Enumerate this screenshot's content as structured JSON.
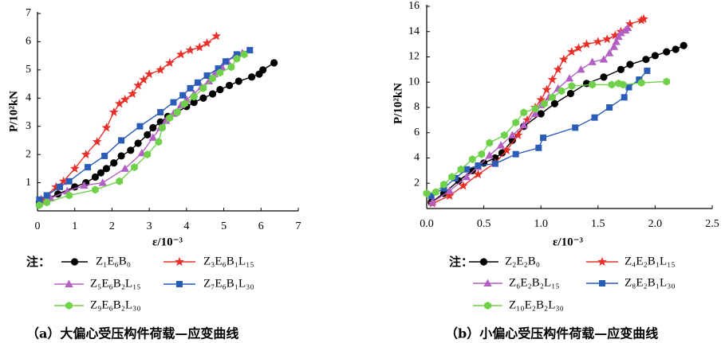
{
  "chart_data": [
    {
      "type": "line",
      "caption": "（a）大偏心受压构件荷载—应变曲线",
      "xlabel": "ε/10⁻³",
      "ylabel": "P/10²kN",
      "xlim": [
        0,
        7
      ],
      "ylim": [
        0,
        7
      ],
      "xticks": [
        0,
        1,
        2,
        3,
        4,
        5,
        6,
        7
      ],
      "xtick_labels": [
        "0",
        "1",
        "2",
        "3",
        "4",
        "5",
        "6",
        "7"
      ],
      "yticks": [
        1,
        2,
        3,
        4,
        5,
        6,
        7
      ],
      "ytick_labels": [
        "1",
        "2",
        "3",
        "4",
        "5",
        "6",
        "7"
      ],
      "grid": false,
      "legend_prefix": "注：",
      "legend_position": "below",
      "series": [
        {
          "name": "Z₁E₆B₀",
          "color": "#000000",
          "marker": "circle",
          "x": [
            0.05,
            0.55,
            1.0,
            1.3,
            1.55,
            1.7,
            1.85,
            2.05,
            2.25,
            2.5,
            2.7,
            2.95,
            3.1,
            3.3,
            3.5,
            3.75,
            4.0,
            4.2,
            4.45,
            4.7,
            4.9,
            5.15,
            5.4,
            5.75,
            5.95,
            6.05,
            6.35
          ],
          "y": [
            0.3,
            0.6,
            0.85,
            1.0,
            1.2,
            1.35,
            1.5,
            1.7,
            1.95,
            2.15,
            2.4,
            2.7,
            2.95,
            3.15,
            3.35,
            3.5,
            3.7,
            3.85,
            4.0,
            4.15,
            4.3,
            4.45,
            4.6,
            4.75,
            4.85,
            5.0,
            5.25
          ]
        },
        {
          "name": "Z₃E₆B₁L₁₅",
          "color": "#e8302a",
          "marker": "star",
          "x": [
            0.1,
            0.5,
            0.7,
            1.0,
            1.3,
            1.6,
            1.85,
            2.05,
            2.2,
            2.35,
            2.55,
            2.7,
            2.85,
            3.0,
            3.3,
            3.55,
            3.85,
            4.1,
            4.35,
            4.55,
            4.8
          ],
          "y": [
            0.4,
            0.85,
            1.05,
            1.5,
            2.0,
            2.45,
            2.95,
            3.5,
            3.8,
            3.95,
            4.15,
            4.45,
            4.65,
            4.85,
            5.0,
            5.25,
            5.55,
            5.7,
            5.8,
            5.95,
            6.2
          ]
        },
        {
          "name": "Z₅E₆B₂L₁₅",
          "color": "#b45fc4",
          "marker": "triangle",
          "x": [
            0.05,
            0.35,
            0.8,
            1.25,
            1.75,
            2.35,
            2.8,
            3.1,
            3.3,
            3.45,
            3.65,
            3.85,
            4.0,
            4.2,
            4.4,
            4.6,
            4.75,
            4.95,
            5.1,
            5.3,
            5.5
          ],
          "y": [
            0.3,
            0.45,
            0.7,
            0.9,
            1.0,
            1.5,
            2.05,
            2.6,
            2.95,
            3.2,
            3.45,
            3.75,
            3.95,
            4.15,
            4.4,
            4.6,
            4.85,
            5.1,
            5.3,
            5.5,
            5.6
          ]
        },
        {
          "name": "Z₇E₆B₁L₃₀",
          "color": "#2a5cb8",
          "marker": "square",
          "x": [
            0.05,
            0.25,
            0.6,
            0.85,
            1.35,
            1.8,
            2.25,
            2.75,
            3.3,
            3.65,
            3.9,
            4.1,
            4.3,
            4.55,
            4.85,
            5.05,
            5.35,
            5.7
          ],
          "y": [
            0.4,
            0.55,
            0.85,
            1.05,
            1.55,
            1.95,
            2.5,
            3.0,
            3.5,
            3.85,
            4.1,
            4.35,
            4.55,
            4.8,
            5.05,
            5.3,
            5.55,
            5.7
          ]
        },
        {
          "name": "Z₉E₆B₂L₃₀",
          "color": "#6fd14a",
          "marker": "hexagon",
          "x": [
            0.05,
            0.25,
            0.85,
            1.55,
            2.2,
            2.6,
            2.95,
            3.25,
            3.35,
            3.55,
            3.75,
            3.95,
            4.2,
            4.45,
            4.7,
            4.9,
            5.2,
            5.35,
            5.55
          ],
          "y": [
            0.2,
            0.3,
            0.55,
            0.75,
            1.05,
            1.55,
            2.0,
            2.45,
            2.95,
            3.3,
            3.5,
            3.8,
            4.05,
            4.35,
            4.7,
            4.9,
            5.1,
            5.4,
            5.55
          ]
        }
      ]
    },
    {
      "type": "line",
      "caption": "（b）小偏心受压构件荷载—应变曲线",
      "xlabel": "ε/10⁻³",
      "ylabel": "P/10²kN",
      "xlim": [
        0,
        2.5
      ],
      "ylim": [
        0,
        16
      ],
      "xticks": [
        0,
        0.5,
        1.0,
        1.5,
        2.0,
        2.5
      ],
      "xtick_labels": [
        "0.0",
        "0.5",
        "1.0",
        "1.5",
        "2.0",
        "2.5"
      ],
      "yticks": [
        2,
        4,
        6,
        8,
        10,
        12,
        14,
        16
      ],
      "ytick_labels": [
        "2",
        "4",
        "6",
        "8",
        "10",
        "12",
        "14",
        "16"
      ],
      "grid": false,
      "legend_prefix": "注：",
      "legend_position": "below",
      "series": [
        {
          "name": "Z₂E₂B₀",
          "color": "#000000",
          "marker": "circle",
          "x": [
            0.04,
            0.15,
            0.28,
            0.4,
            0.5,
            0.6,
            0.66,
            0.75,
            0.85,
            1.0,
            1.12,
            1.26,
            1.4,
            1.55,
            1.7,
            1.78,
            1.92,
            2.0,
            2.1,
            2.18,
            2.25
          ],
          "y": [
            0.5,
            1.2,
            2.2,
            3.0,
            3.6,
            4.0,
            4.4,
            5.4,
            6.5,
            7.5,
            8.3,
            9.1,
            9.9,
            10.4,
            11.0,
            11.4,
            11.8,
            12.1,
            12.4,
            12.6,
            12.9
          ]
        },
        {
          "name": "Z₄E₂B₁L₁₅",
          "color": "#e8302a",
          "marker": "star",
          "x": [
            0.05,
            0.2,
            0.32,
            0.45,
            0.6,
            0.7,
            0.8,
            0.88,
            0.95,
            1.0,
            1.05,
            1.1,
            1.15,
            1.2,
            1.27,
            1.33,
            1.4,
            1.5,
            1.58,
            1.65,
            1.7,
            1.78,
            1.88,
            1.9
          ],
          "y": [
            0.4,
            1.0,
            1.8,
            2.7,
            3.6,
            4.6,
            5.8,
            7.0,
            8.0,
            8.6,
            9.4,
            10.2,
            11.0,
            11.8,
            12.4,
            12.7,
            13.0,
            13.2,
            13.4,
            13.7,
            14.0,
            14.6,
            14.9,
            15.0
          ]
        },
        {
          "name": "Z₆E₂B₂L₁₅",
          "color": "#b45fc4",
          "marker": "triangle",
          "x": [
            0.05,
            0.2,
            0.35,
            0.45,
            0.55,
            0.65,
            0.75,
            0.85,
            0.95,
            1.0,
            1.07,
            1.15,
            1.25,
            1.35,
            1.45,
            1.55,
            1.6,
            1.64,
            1.66,
            1.68,
            1.7,
            1.74,
            1.76
          ],
          "y": [
            0.5,
            1.4,
            2.5,
            3.3,
            4.2,
            5.0,
            5.8,
            6.6,
            7.5,
            8.2,
            8.8,
            9.5,
            10.3,
            11.0,
            11.6,
            11.8,
            12.3,
            12.8,
            13.2,
            13.6,
            13.9,
            14.1,
            14.3
          ]
        },
        {
          "name": "Z₈E₂B₁L₃₀",
          "color": "#2a5cb8",
          "marker": "square",
          "x": [
            0.04,
            0.15,
            0.25,
            0.35,
            0.45,
            0.6,
            0.78,
            0.98,
            1.02,
            1.3,
            1.47,
            1.6,
            1.73,
            1.77,
            1.86,
            1.93
          ],
          "y": [
            1.0,
            1.6,
            2.4,
            3.1,
            3.4,
            3.55,
            4.3,
            4.8,
            5.6,
            6.4,
            7.2,
            8.0,
            8.8,
            9.6,
            10.2,
            10.9
          ]
        },
        {
          "name": "Z₁₀E₂B₂L₃₀",
          "color": "#6fd14a",
          "marker": "hexagon",
          "x": [
            0.0,
            0.08,
            0.15,
            0.22,
            0.3,
            0.4,
            0.48,
            0.55,
            0.68,
            0.78,
            0.85,
            0.95,
            1.03,
            1.1,
            1.18,
            1.27,
            1.45,
            1.62,
            1.68,
            1.72,
            1.88,
            2.1
          ],
          "y": [
            1.2,
            1.3,
            1.9,
            2.5,
            3.1,
            3.9,
            4.3,
            5.2,
            5.8,
            6.8,
            7.6,
            7.9,
            8.3,
            8.8,
            9.3,
            9.7,
            9.8,
            9.8,
            9.9,
            9.8,
            9.95,
            10.05
          ]
        }
      ]
    }
  ]
}
